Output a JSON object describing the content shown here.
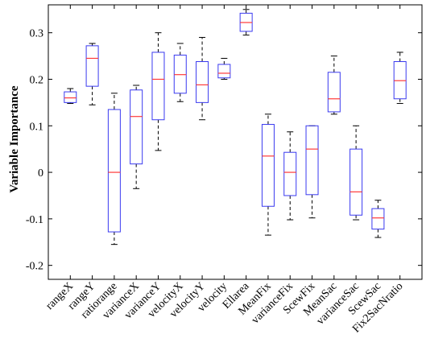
{
  "chart_data": {
    "type": "box",
    "title": "",
    "xlabel": "",
    "ylabel": "Variable Importance",
    "ylim": [
      -0.23,
      0.36
    ],
    "yticks": [
      -0.2,
      -0.1,
      0,
      0.1,
      0.2,
      0.3
    ],
    "ytick_labels": [
      "-0.2",
      "-0.1",
      "0",
      "0.1",
      "0.2",
      "0.3"
    ],
    "grid": false,
    "box_color": "#3a3af0",
    "median_color": "#ff3a3a",
    "whisker_color": "#000000",
    "categories": [
      "rangeX",
      "rangeY",
      "ratiorange",
      "varianceX",
      "varianceY",
      "velocityX",
      "velocityY",
      "velocity",
      "Ellarea",
      "MeanFix",
      "varianceFix",
      "ScewFix",
      "MeanSac",
      "varianceSac",
      "ScewSac",
      "Fix2SacNratio"
    ],
    "boxes": [
      {
        "min": 0.148,
        "q1": 0.15,
        "median": 0.16,
        "q3": 0.173,
        "max": 0.18
      },
      {
        "min": 0.145,
        "q1": 0.185,
        "median": 0.245,
        "q3": 0.272,
        "max": 0.277
      },
      {
        "min": -0.155,
        "q1": -0.128,
        "median": 0.0,
        "q3": 0.135,
        "max": 0.17
      },
      {
        "min": -0.035,
        "q1": 0.018,
        "median": 0.12,
        "q3": 0.177,
        "max": 0.187
      },
      {
        "min": 0.047,
        "q1": 0.113,
        "median": 0.2,
        "q3": 0.258,
        "max": 0.3
      },
      {
        "min": 0.152,
        "q1": 0.17,
        "median": 0.21,
        "q3": 0.252,
        "max": 0.277
      },
      {
        "min": 0.113,
        "q1": 0.15,
        "median": 0.188,
        "q3": 0.238,
        "max": 0.29
      },
      {
        "min": 0.2,
        "q1": 0.203,
        "median": 0.213,
        "q3": 0.232,
        "max": 0.245
      },
      {
        "min": 0.295,
        "q1": 0.303,
        "median": 0.322,
        "q3": 0.342,
        "max": 0.35
      },
      {
        "min": -0.135,
        "q1": -0.073,
        "median": 0.035,
        "q3": 0.103,
        "max": 0.125
      },
      {
        "min": -0.102,
        "q1": -0.05,
        "median": 0.0,
        "q3": 0.043,
        "max": 0.087
      },
      {
        "min": -0.098,
        "q1": -0.048,
        "median": 0.05,
        "q3": 0.1,
        "max": 0.1
      },
      {
        "min": 0.125,
        "q1": 0.13,
        "median": 0.158,
        "q3": 0.215,
        "max": 0.25
      },
      {
        "min": -0.102,
        "q1": -0.092,
        "median": -0.042,
        "q3": 0.05,
        "max": 0.1
      },
      {
        "min": -0.14,
        "q1": -0.122,
        "median": -0.098,
        "q3": -0.078,
        "max": -0.06
      },
      {
        "min": 0.148,
        "q1": 0.158,
        "median": 0.197,
        "q3": 0.238,
        "max": 0.258
      }
    ]
  }
}
